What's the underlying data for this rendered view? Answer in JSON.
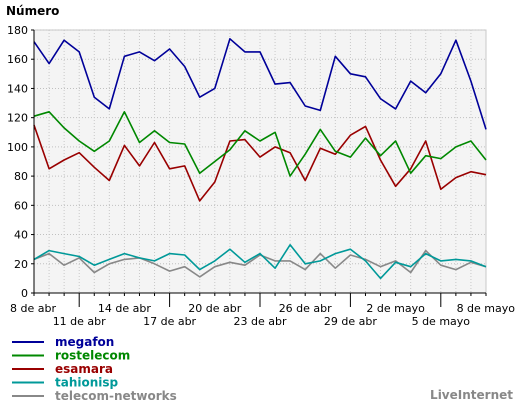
{
  "chart_data": {
    "type": "line",
    "ylabel": "Número",
    "ylim": [
      0,
      180
    ],
    "y_ticks": [
      0,
      20,
      40,
      60,
      80,
      100,
      120,
      140,
      160,
      180
    ],
    "grid": true,
    "legend_position": "bottom-left",
    "x_tick_labels_row1": [
      {
        "index": 0,
        "label": "8 de abr"
      },
      {
        "index": 6,
        "label": "14 de abr"
      },
      {
        "index": 12,
        "label": "20 de abr"
      },
      {
        "index": 18,
        "label": "26 de abr"
      },
      {
        "index": 24,
        "label": "2 de mayo"
      },
      {
        "index": 30,
        "label": "8 de mayo"
      }
    ],
    "x_tick_labels_row2": [
      {
        "index": 3,
        "label": "11 de abr"
      },
      {
        "index": 9,
        "label": "17 de abr"
      },
      {
        "index": 15,
        "label": "23 de abr"
      },
      {
        "index": 21,
        "label": "29 de abr"
      },
      {
        "index": 27,
        "label": "5 de mayo"
      }
    ],
    "series": [
      {
        "name": "megafon",
        "color": "#000099",
        "values": [
          172,
          157,
          173,
          165,
          134,
          126,
          162,
          165,
          159,
          167,
          155,
          134,
          140,
          174,
          165,
          165,
          143,
          144,
          128,
          125,
          162,
          150,
          148,
          133,
          126,
          145,
          137,
          150,
          173,
          145,
          112
        ]
      },
      {
        "name": "rostelecom",
        "color": "#008800",
        "values": [
          121,
          124,
          113,
          104,
          97,
          104,
          124,
          103,
          111,
          103,
          102,
          82,
          90,
          98,
          111,
          104,
          110,
          80,
          95,
          112,
          97,
          93,
          106,
          94,
          104,
          82,
          94,
          92,
          100,
          104,
          91
        ]
      },
      {
        "name": "esamara",
        "color": "#990000",
        "values": [
          115,
          85,
          91,
          96,
          86,
          77,
          101,
          87,
          103,
          85,
          87,
          63,
          76,
          104,
          105,
          93,
          100,
          96,
          77,
          99,
          95,
          108,
          114,
          91,
          73,
          85,
          104,
          71,
          79,
          83,
          81
        ]
      },
      {
        "name": "tahionisp",
        "color": "#009999",
        "values": [
          23,
          29,
          27,
          25,
          19,
          23,
          27,
          24,
          22,
          27,
          26,
          16,
          22,
          30,
          21,
          27,
          17,
          33,
          20,
          22,
          27,
          30,
          22,
          10,
          21,
          18,
          27,
          22,
          23,
          22,
          18
        ]
      },
      {
        "name": "telecom-networks",
        "color": "#888888",
        "values": [
          23,
          27,
          19,
          24,
          14,
          20,
          23,
          24,
          20,
          15,
          18,
          11,
          18,
          21,
          19,
          26,
          22,
          22,
          16,
          27,
          17,
          26,
          23,
          18,
          22,
          14,
          29,
          19,
          16,
          21,
          18
        ]
      }
    ]
  },
  "brand": "LiveInternet"
}
